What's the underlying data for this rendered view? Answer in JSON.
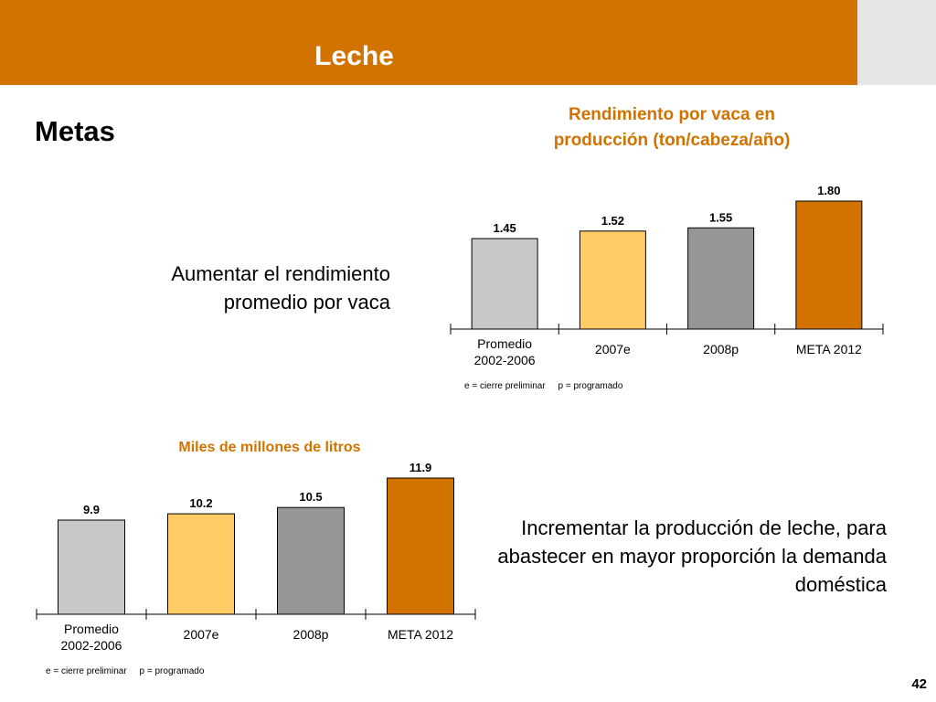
{
  "header": {
    "title": "Leche"
  },
  "section_title": "Metas",
  "goals": [
    "Aumentar el rendimiento promedio por vaca",
    "Incrementar  la producción de leche, para abastecer en mayor proporción la demanda doméstica"
  ],
  "footnote": "e = cierre preliminar     p = programado",
  "page_number": "42",
  "colors": {
    "accent": "#D27300",
    "bar_promedio": "#C8C8C8",
    "bar_2007e": "#FFCC66",
    "bar_2008p": "#969696",
    "bar_meta": "#D27300"
  },
  "chart_data": [
    {
      "type": "bar",
      "title": "Rendimiento por  vaca en producción (ton/cabeza/año)",
      "categories": [
        "Promedio 2002-2006",
        "2007e",
        "2008p",
        "META 2012"
      ],
      "values": [
        1.45,
        1.52,
        1.55,
        1.8
      ],
      "value_labels": [
        "1.45",
        "1.52",
        "1.55",
        "1.80"
      ],
      "bar_colors": [
        "#C8C8C8",
        "#FFCC66",
        "#969696",
        "#D27300"
      ],
      "grid": false,
      "legend": "none"
    },
    {
      "type": "bar",
      "title": "Miles de millones de litros",
      "categories": [
        "Promedio 2002-2006",
        "2007e",
        "2008p",
        "META 2012"
      ],
      "values": [
        9.9,
        10.2,
        10.5,
        11.9
      ],
      "value_labels": [
        "9.9",
        "10.2",
        "10.5",
        "11.9"
      ],
      "bar_colors": [
        "#C8C8C8",
        "#FFCC66",
        "#969696",
        "#D27300"
      ],
      "grid": false,
      "legend": "none"
    }
  ]
}
